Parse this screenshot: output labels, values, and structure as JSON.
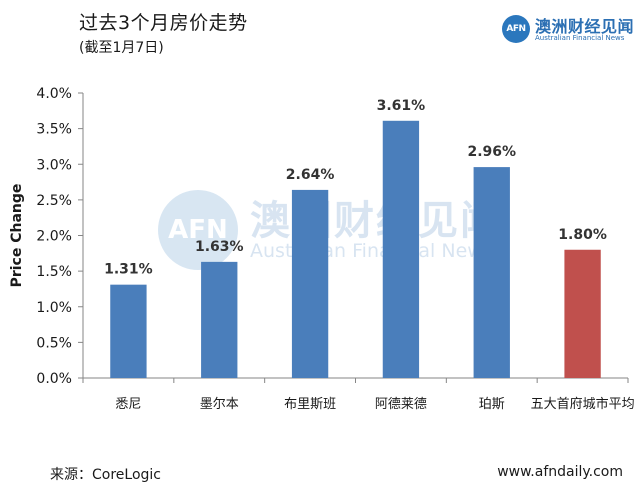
{
  "header": {
    "title": "过去3个月房价走势",
    "subtitle": "(截至1月7日)"
  },
  "logo": {
    "badge": "AFN",
    "cn": "澳洲财经见闻",
    "en": "Australian Financial News"
  },
  "watermark": {
    "badge": "AFN",
    "cn": "澳洲财经见闻",
    "en": "Australian Financial News"
  },
  "footer": {
    "source": "来源：CoreLogic",
    "site": "www.afndaily.com"
  },
  "colors": {
    "bar_blue": "#4a7ebb",
    "bar_red": "#c0504d"
  },
  "chart_data": {
    "type": "bar",
    "title": "过去3个月房价走势",
    "subtitle": "(截至1月7日)",
    "xlabel": "",
    "ylabel": "Price Change",
    "ylim": [
      0,
      4.0
    ],
    "yticks": [
      "0.0%",
      "0.5%",
      "1.0%",
      "1.5%",
      "2.0%",
      "2.5%",
      "3.0%",
      "3.5%",
      "4.0%"
    ],
    "categories": [
      "悉尼",
      "墨尔本",
      "布里斯班",
      "阿德莱德",
      "珀斯",
      "五大首府城市平均"
    ],
    "values": [
      1.31,
      1.63,
      2.64,
      3.61,
      2.96,
      1.8
    ],
    "data_labels": [
      "1.31%",
      "1.63%",
      "2.64%",
      "3.61%",
      "2.96%",
      "1.80%"
    ],
    "bar_colors": [
      "#4a7ebb",
      "#4a7ebb",
      "#4a7ebb",
      "#4a7ebb",
      "#4a7ebb",
      "#c0504d"
    ],
    "grid": false,
    "legend": "none"
  }
}
